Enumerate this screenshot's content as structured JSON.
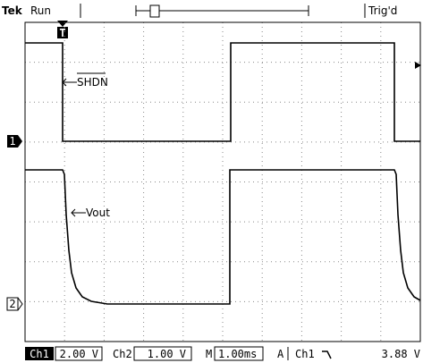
{
  "header": {
    "brand": "Tek",
    "state": "Run",
    "trigger_status": "Trig'd",
    "trigger_marker": "T"
  },
  "labels": {
    "ch1_signal": "SHDN",
    "ch2_signal": "Vout",
    "ch1_marker": "1",
    "ch2_marker": "2"
  },
  "status": {
    "ch1": "Ch1",
    "ch1_scale": "2.00 V",
    "ch2": "Ch2",
    "ch2_scale": "1.00 V",
    "timebase_label": "M",
    "timebase": "1.00ms",
    "trigger_mode": "A",
    "trigger_source": "Ch1",
    "trigger_level": "3.88 V"
  }
}
